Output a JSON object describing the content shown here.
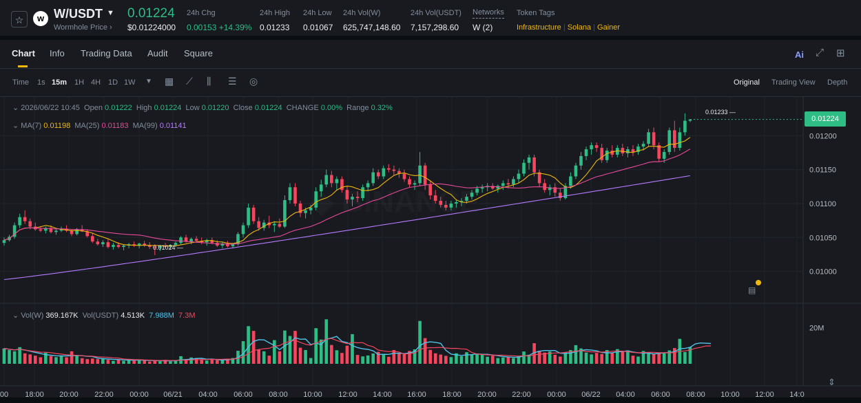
{
  "header": {
    "pair": "W/USDT",
    "subtitle": "Wormhole Price",
    "subtitle_arrow": "›",
    "last_price": "0.01224",
    "usd_price": "$0.01224000",
    "logo_letter": "w",
    "stats": [
      {
        "label": "24h Chg",
        "value": "0.00153 +14.39%",
        "color": "green"
      },
      {
        "label": "24h High",
        "value": "0.01233",
        "color": ""
      },
      {
        "label": "24h Low",
        "value": "0.01067",
        "color": ""
      },
      {
        "label": "24h Vol(W)",
        "value": "625,747,148.60",
        "color": ""
      },
      {
        "label": "24h Vol(USDT)",
        "value": "7,157,298.60",
        "color": ""
      },
      {
        "label": "Networks",
        "value": "W (2)",
        "color": ""
      }
    ],
    "token_tags_label": "Token Tags",
    "token_tags": [
      "Infrastructure",
      "Solana",
      "Gainer"
    ]
  },
  "tabs": [
    "Chart",
    "Info",
    "Trading Data",
    "Audit",
    "Square"
  ],
  "active_tab": "Chart",
  "timeframes": [
    "Time",
    "1s",
    "15m",
    "1H",
    "4H",
    "1D",
    "1W"
  ],
  "active_timeframe": "15m",
  "views": [
    "Original",
    "Trading View",
    "Depth"
  ],
  "active_view": "Original",
  "ohlc": {
    "date": "2026/06/22 10:45",
    "open_label": "Open",
    "open": "0.01222",
    "high_label": "High",
    "high": "0.01224",
    "low_label": "Low",
    "low": "0.01220",
    "close_label": "Close",
    "close": "0.01224",
    "change_label": "CHANGE",
    "change": "0.00%",
    "range_label": "Range",
    "range": "0.32%"
  },
  "ma": {
    "ma7_label": "MA(7)",
    "ma7": "0.01198",
    "ma25_label": "MA(25)",
    "ma25": "0.01183",
    "ma99_label": "MA(99)",
    "ma99": "0.01141"
  },
  "volume": {
    "vol_label": "Vol(W)",
    "vol_w": "369.167K",
    "vol_usdt_label": "Vol(USDT)",
    "vol_usdt": "4.513K",
    "ma1": "7.988M",
    "ma2": "7.3M"
  },
  "current_price_tag": "0.01224",
  "high_marker": "0.01233",
  "low_marker": "0.01024",
  "colors": {
    "up": "#2ebd85",
    "down": "#f6465d",
    "ma7": "#f0b90b",
    "ma25": "#e84a9a",
    "ma99": "#b57cff",
    "accent": "#f0b90b"
  },
  "icons": [
    "star-icon",
    "chevron-down-icon",
    "ai-icon",
    "expand-icon",
    "grid-icon",
    "calendar-icon",
    "line-tool-icon",
    "indicator-icon",
    "settings-icon",
    "target-icon",
    "clipboard-icon",
    "fit-icon"
  ],
  "chart_data": {
    "type": "candlestick",
    "price_axis": [
      "0.01200",
      "0.01150",
      "0.01100",
      "0.01050",
      "0.01000"
    ],
    "price_ylim": [
      0.00953,
      0.01253
    ],
    "volume_axis": [
      "20M"
    ],
    "time_axis": [
      "00",
      "18:00",
      "20:00",
      "22:00",
      "00:00",
      "06/21",
      "04:00",
      "06:00",
      "08:00",
      "10:00",
      "12:00",
      "14:00",
      "16:00",
      "18:00",
      "20:00",
      "22:00",
      "00:00",
      "06/22",
      "04:00",
      "06:00",
      "08:00",
      "10:00",
      "12:00",
      "14:0"
    ],
    "candles": [
      [
        0.01042,
        0.0105,
        0.01038,
        0.01046
      ],
      [
        0.01046,
        0.01054,
        0.01044,
        0.01051
      ],
      [
        0.01051,
        0.01072,
        0.01048,
        0.01068
      ],
      [
        0.01068,
        0.01085,
        0.01064,
        0.0108
      ],
      [
        0.0108,
        0.0109,
        0.0107,
        0.01074
      ],
      [
        0.01074,
        0.01078,
        0.01062,
        0.01066
      ],
      [
        0.01066,
        0.01072,
        0.0106,
        0.01062
      ],
      [
        0.01062,
        0.01066,
        0.01058,
        0.0106
      ],
      [
        0.0106,
        0.01066,
        0.01056,
        0.01064
      ],
      [
        0.01064,
        0.01068,
        0.01056,
        0.01058
      ],
      [
        0.01058,
        0.01062,
        0.01054,
        0.0106
      ],
      [
        0.0106,
        0.01066,
        0.01058,
        0.01063
      ],
      [
        0.01063,
        0.01068,
        0.01058,
        0.0106
      ],
      [
        0.0106,
        0.01062,
        0.01052,
        0.01055
      ],
      [
        0.01055,
        0.01064,
        0.01053,
        0.01062
      ],
      [
        0.01062,
        0.01068,
        0.01058,
        0.01059
      ],
      [
        0.01059,
        0.01062,
        0.0105,
        0.01052
      ],
      [
        0.01052,
        0.01056,
        0.01042,
        0.01044
      ],
      [
        0.01044,
        0.01048,
        0.01038,
        0.0104
      ],
      [
        0.0104,
        0.01046,
        0.01036,
        0.01043
      ],
      [
        0.01043,
        0.01047,
        0.01034,
        0.01036
      ],
      [
        0.01036,
        0.01042,
        0.01032,
        0.01039
      ],
      [
        0.01039,
        0.01043,
        0.01034,
        0.01036
      ],
      [
        0.01036,
        0.0104,
        0.01031,
        0.01038
      ],
      [
        0.01038,
        0.01042,
        0.01034,
        0.0104
      ],
      [
        0.0104,
        0.01044,
        0.01036,
        0.01038
      ],
      [
        0.01038,
        0.01042,
        0.01034,
        0.01041
      ],
      [
        0.01041,
        0.01045,
        0.01036,
        0.01039
      ],
      [
        0.01039,
        0.01043,
        0.01033,
        0.01036
      ],
      [
        0.01036,
        0.0104,
        0.01024,
        0.01035
      ],
      [
        0.01035,
        0.01038,
        0.0103,
        0.01037
      ],
      [
        0.01037,
        0.01042,
        0.01034,
        0.01036
      ],
      [
        0.01036,
        0.0104,
        0.01032,
        0.01039
      ],
      [
        0.01039,
        0.01044,
        0.01036,
        0.01042
      ],
      [
        0.01042,
        0.01052,
        0.0104,
        0.0105
      ],
      [
        0.0105,
        0.01054,
        0.01042,
        0.01044
      ],
      [
        0.01044,
        0.0105,
        0.0104,
        0.01048
      ],
      [
        0.01048,
        0.01052,
        0.01042,
        0.01045
      ],
      [
        0.01045,
        0.0105,
        0.0104,
        0.01043
      ],
      [
        0.01043,
        0.01048,
        0.01038,
        0.01046
      ],
      [
        0.01046,
        0.0105,
        0.0104,
        0.01042
      ],
      [
        0.01042,
        0.01046,
        0.01036,
        0.01038
      ],
      [
        0.01038,
        0.01044,
        0.01034,
        0.01041
      ],
      [
        0.01041,
        0.01045,
        0.01035,
        0.01037
      ],
      [
        0.01037,
        0.01042,
        0.01034,
        0.0104
      ],
      [
        0.0104,
        0.01058,
        0.01038,
        0.01055
      ],
      [
        0.01055,
        0.01072,
        0.0105,
        0.01068
      ],
      [
        0.01068,
        0.011,
        0.01064,
        0.01094
      ],
      [
        0.01094,
        0.01098,
        0.0107,
        0.01074
      ],
      [
        0.01074,
        0.0108,
        0.0106,
        0.01064
      ],
      [
        0.01064,
        0.01076,
        0.0106,
        0.01072
      ],
      [
        0.01072,
        0.01082,
        0.01064,
        0.01068
      ],
      [
        0.01068,
        0.01074,
        0.01058,
        0.0107
      ],
      [
        0.0107,
        0.01078,
        0.01064,
        0.01066
      ],
      [
        0.01066,
        0.01112,
        0.01064,
        0.01105
      ],
      [
        0.01105,
        0.0113,
        0.011,
        0.01124
      ],
      [
        0.01124,
        0.0113,
        0.01096,
        0.011
      ],
      [
        0.011,
        0.01104,
        0.0108,
        0.01086
      ],
      [
        0.01086,
        0.01094,
        0.01078,
        0.0109
      ],
      [
        0.0109,
        0.01098,
        0.01084,
        0.01094
      ],
      [
        0.01094,
        0.01124,
        0.0109,
        0.01118
      ],
      [
        0.01118,
        0.01135,
        0.0111,
        0.01128
      ],
      [
        0.01128,
        0.0115,
        0.01124,
        0.01142
      ],
      [
        0.01142,
        0.01148,
        0.01124,
        0.0113
      ],
      [
        0.0113,
        0.0114,
        0.0112,
        0.01136
      ],
      [
        0.01136,
        0.0114,
        0.01116,
        0.0112
      ],
      [
        0.0112,
        0.01126,
        0.011,
        0.01106
      ],
      [
        0.01106,
        0.01114,
        0.01096,
        0.0111
      ],
      [
        0.0111,
        0.01118,
        0.01102,
        0.01108
      ],
      [
        0.01108,
        0.01128,
        0.01104,
        0.01124
      ],
      [
        0.01124,
        0.01134,
        0.01118,
        0.0113
      ],
      [
        0.0113,
        0.01152,
        0.01126,
        0.01146
      ],
      [
        0.01146,
        0.0115,
        0.01136,
        0.0114
      ],
      [
        0.0114,
        0.01156,
        0.01136,
        0.01152
      ],
      [
        0.01152,
        0.01158,
        0.01146,
        0.0115
      ],
      [
        0.0115,
        0.01156,
        0.01142,
        0.01148
      ],
      [
        0.01148,
        0.01152,
        0.01138,
        0.01144
      ],
      [
        0.01144,
        0.0115,
        0.01132,
        0.01136
      ],
      [
        0.01136,
        0.0114,
        0.01124,
        0.01128
      ],
      [
        0.01128,
        0.01134,
        0.0112,
        0.0113
      ],
      [
        0.0113,
        0.01176,
        0.01126,
        0.01156
      ],
      [
        0.01156,
        0.0116,
        0.0112,
        0.01128
      ],
      [
        0.01128,
        0.01134,
        0.01106,
        0.01112
      ],
      [
        0.01112,
        0.0112,
        0.011,
        0.01104
      ],
      [
        0.01104,
        0.0111,
        0.01094,
        0.01098
      ],
      [
        0.01098,
        0.01104,
        0.0109,
        0.01094
      ],
      [
        0.01094,
        0.01104,
        0.0109,
        0.011
      ],
      [
        0.011,
        0.01106,
        0.01094,
        0.01102
      ],
      [
        0.01102,
        0.01108,
        0.01096,
        0.01104
      ],
      [
        0.01104,
        0.01114,
        0.011,
        0.0111
      ],
      [
        0.0111,
        0.0112,
        0.01106,
        0.01116
      ],
      [
        0.01116,
        0.01126,
        0.01112,
        0.01122
      ],
      [
        0.01122,
        0.01128,
        0.01116,
        0.01124
      ],
      [
        0.01124,
        0.0113,
        0.01118,
        0.01126
      ],
      [
        0.01126,
        0.0113,
        0.0112,
        0.01122
      ],
      [
        0.01122,
        0.01128,
        0.01116,
        0.01126
      ],
      [
        0.01126,
        0.01134,
        0.0112,
        0.0113
      ],
      [
        0.0113,
        0.01136,
        0.01122,
        0.01128
      ],
      [
        0.01128,
        0.0114,
        0.01124,
        0.01136
      ],
      [
        0.01136,
        0.0115,
        0.0113,
        0.01144
      ],
      [
        0.01144,
        0.01165,
        0.0114,
        0.0116
      ],
      [
        0.0116,
        0.01172,
        0.0115,
        0.01168
      ],
      [
        0.01168,
        0.01172,
        0.0114,
        0.01146
      ],
      [
        0.01146,
        0.0115,
        0.01124,
        0.0113
      ],
      [
        0.0113,
        0.01136,
        0.01116,
        0.0112
      ],
      [
        0.0112,
        0.01128,
        0.01112,
        0.01124
      ],
      [
        0.01124,
        0.0113,
        0.0111,
        0.01116
      ],
      [
        0.01116,
        0.01122,
        0.01104,
        0.01108
      ],
      [
        0.01108,
        0.0113,
        0.01106,
        0.01126
      ],
      [
        0.01126,
        0.01146,
        0.01122,
        0.0114
      ],
      [
        0.0114,
        0.0116,
        0.01136,
        0.01156
      ],
      [
        0.01156,
        0.01176,
        0.0115,
        0.0117
      ],
      [
        0.0117,
        0.01184,
        0.01164,
        0.0118
      ],
      [
        0.0118,
        0.0119,
        0.01172,
        0.01186
      ],
      [
        0.01186,
        0.0119,
        0.01176,
        0.01182
      ],
      [
        0.01182,
        0.01188,
        0.0116,
        0.01164
      ],
      [
        0.01164,
        0.01182,
        0.0116,
        0.01178
      ],
      [
        0.01178,
        0.01186,
        0.01168,
        0.01172
      ],
      [
        0.01172,
        0.01186,
        0.01168,
        0.01182
      ],
      [
        0.01182,
        0.01188,
        0.0117,
        0.01174
      ],
      [
        0.01174,
        0.01184,
        0.01168,
        0.0118
      ],
      [
        0.0118,
        0.01186,
        0.0117,
        0.01176
      ],
      [
        0.01176,
        0.01188,
        0.01172,
        0.01184
      ],
      [
        0.01184,
        0.01192,
        0.01178,
        0.01188
      ],
      [
        0.01188,
        0.0121,
        0.01184,
        0.01205
      ],
      [
        0.01205,
        0.01212,
        0.0118,
        0.01186
      ],
      [
        0.01186,
        0.0119,
        0.01162,
        0.01166
      ],
      [
        0.01166,
        0.0118,
        0.0116,
        0.01176
      ],
      [
        0.01176,
        0.01212,
        0.01172,
        0.01208
      ],
      [
        0.01208,
        0.01222,
        0.01176,
        0.01182
      ],
      [
        0.01182,
        0.01212,
        0.01178,
        0.01205
      ],
      [
        0.01205,
        0.01233,
        0.012,
        0.01222
      ],
      [
        0.01222,
        0.01224,
        0.0122,
        0.01224
      ]
    ],
    "volume_millions": [
      8.5,
      7.6,
      6.9,
      9.2,
      5.8,
      5.2,
      4.5,
      3.6,
      6.1,
      4.3,
      3.7,
      4.2,
      3.6,
      6.9,
      4.6,
      3.1,
      2.6,
      2.9,
      2.6,
      3.1,
      2.2,
      1.6,
      2.2,
      1.6,
      2.7,
      1.7,
      2.2,
      1.7,
      1.3,
      2.0,
      1.4,
      2.2,
      1.3,
      1.8,
      4.2,
      2.2,
      3.5,
      3.1,
      2.2,
      1.8,
      2.5,
      2.0,
      1.9,
      2.8,
      3.2,
      7.2,
      12.5,
      20.8,
      18.2,
      7.8,
      6.9,
      4.5,
      13.1,
      6.9,
      18.4,
      15.4,
      18.2,
      8.9,
      7.6,
      3.2,
      19.7,
      13.4,
      24.6,
      10.4,
      7.5,
      6.0,
      10.0,
      16.4,
      4.9,
      4.1,
      4.6,
      5.7,
      6.6,
      5.2,
      3.9,
      7.6,
      6.0,
      5.4,
      7.1,
      8.0,
      23.7,
      14.2,
      7.7,
      5.8,
      5.1,
      4.4,
      3.7,
      5.8,
      4.2,
      6.4,
      5.1,
      5.7,
      5.1,
      3.9,
      4.5,
      3.2,
      3.5,
      3.8,
      3.2,
      4.4,
      6.8,
      5.0,
      11.4,
      7.2,
      6.2,
      6.8,
      5.0,
      4.0,
      6.4,
      7.6,
      10.3,
      8.5,
      6.2,
      5.2,
      6.0,
      5.4,
      7.6,
      6.1,
      8.1,
      6.6,
      7.4,
      4.5,
      4.0,
      7.1,
      6.4,
      5.4,
      5.6,
      6.2,
      7.4,
      8.7,
      13.8,
      6.5,
      9.3,
      16.8,
      11.2,
      13.1,
      5.7
    ],
    "series": [
      {
        "name": "MA(7)",
        "color": "#f0b90b"
      },
      {
        "name": "MA(25)",
        "color": "#e84a9a"
      },
      {
        "name": "MA(99)",
        "color": "#b57cff"
      }
    ]
  }
}
